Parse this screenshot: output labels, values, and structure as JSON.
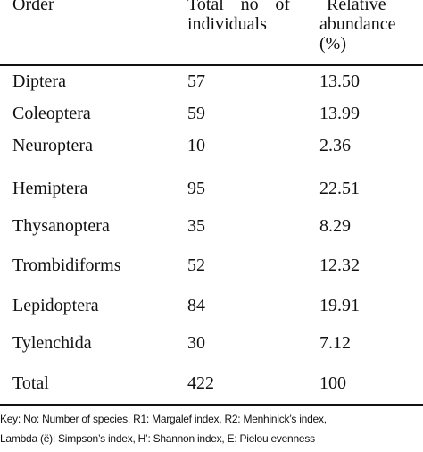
{
  "table": {
    "headers": {
      "order": "Order",
      "total_line1_a": "Total",
      "total_line1_b": "no",
      "total_line1_c": "of",
      "total_line2": "individuals",
      "relative_line1": "Relative",
      "relative_line2": "abundance",
      "relative_line3": "(%)"
    },
    "rows": [
      {
        "order": "Diptera",
        "total": "57",
        "relative": "13.50"
      },
      {
        "order": "Coleoptera",
        "total": "59",
        "relative": "13.99"
      },
      {
        "order": "Neuroptera",
        "total": "10",
        "relative": "2.36"
      },
      {
        "order": "Hemiptera",
        "total": "95",
        "relative": "22.51"
      },
      {
        "order": "Thysanoptera",
        "total": "35",
        "relative": "8.29"
      },
      {
        "order": "Trombidiforms",
        "total": "52",
        "relative": "12.32"
      },
      {
        "order": "Lepidoptera",
        "total": "84",
        "relative": "19.91"
      },
      {
        "order": "Tylenchida",
        "total": "30",
        "relative": "7.12"
      },
      {
        "order": "Total",
        "total": "422",
        "relative": "100"
      }
    ]
  },
  "footnote": {
    "line1": "Key: No: Number of species, R1: Margalef index, R2: Menhinick’s index,",
    "line2": "Lambda (ë): Simpson’s index, H’: Shannon index, E: Pielou evenness"
  }
}
